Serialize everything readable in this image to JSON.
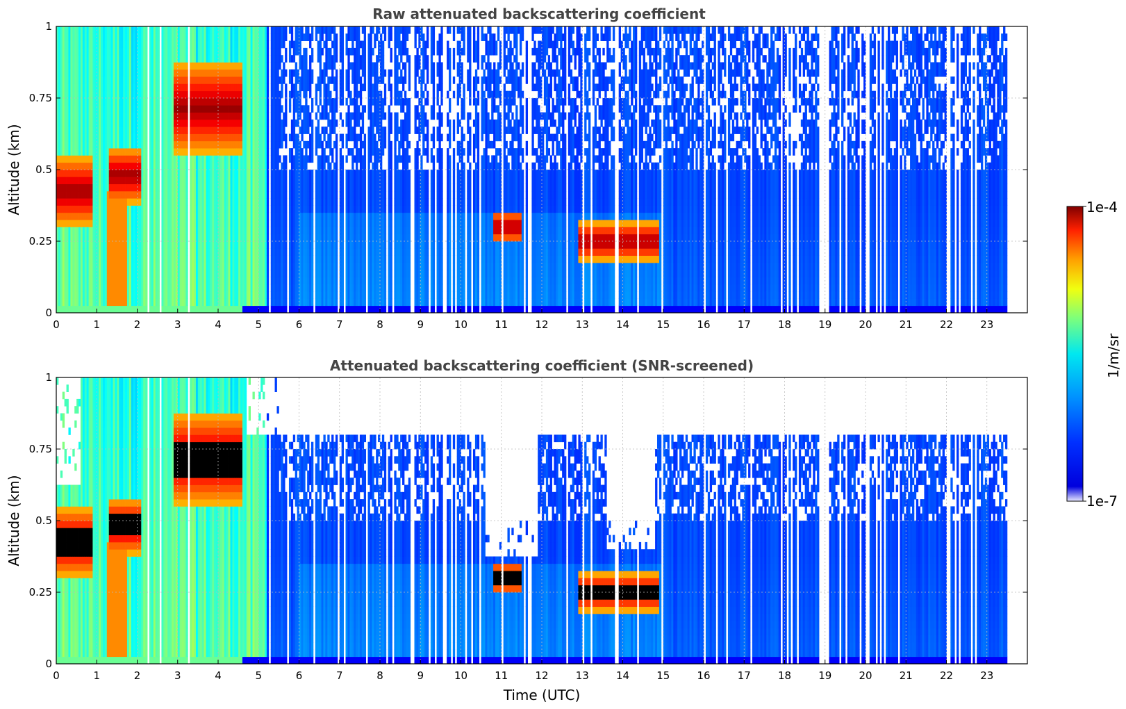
{
  "chart_data": [
    {
      "type": "heatmap",
      "title": "Raw attenuated backscattering coefficient",
      "xlabel": "",
      "ylabel": "Altitude (km)",
      "xlim": [
        0,
        24
      ],
      "ylim": [
        0,
        1
      ],
      "x_ticks": [
        "0",
        "1",
        "2",
        "3",
        "4",
        "5",
        "6",
        "7",
        "8",
        "9",
        "10",
        "11",
        "12",
        "13",
        "14",
        "15",
        "16",
        "17",
        "18",
        "19",
        "20",
        "21",
        "22",
        "23"
      ],
      "y_ticks": [
        "0",
        "0.25",
        "0.5",
        "0.75",
        "1"
      ],
      "grid": true,
      "data_extent_time": [
        0,
        23.5
      ],
      "features": [
        {
          "kind": "cloud",
          "time": [
            0.0,
            0.9
          ],
          "altitude": [
            0.3,
            0.55
          ],
          "level": "high"
        },
        {
          "kind": "cloud",
          "time": [
            1.3,
            2.1
          ],
          "altitude": [
            0.38,
            0.58
          ],
          "level": "high"
        },
        {
          "kind": "cloud",
          "time": [
            2.9,
            4.6
          ],
          "altitude": [
            0.55,
            0.88
          ],
          "level": "high"
        },
        {
          "kind": "cloud",
          "time": [
            10.8,
            11.5
          ],
          "altitude": [
            0.24,
            0.36
          ],
          "level": "high"
        },
        {
          "kind": "cloud",
          "time": [
            12.9,
            14.9
          ],
          "altitude": [
            0.18,
            0.32
          ],
          "level": "high"
        },
        {
          "kind": "aerosol",
          "time": [
            1.3,
            1.7
          ],
          "altitude": [
            0.0,
            0.4
          ],
          "level": "moderate"
        },
        {
          "kind": "noise",
          "time": [
            6.0,
            23.5
          ],
          "altitude": [
            0.5,
            1.0
          ],
          "level": "low"
        }
      ]
    },
    {
      "type": "heatmap",
      "title": "Attenuated backscattering coefficient (SNR-screened)",
      "xlabel": "Time (UTC)",
      "ylabel": "Altitude (km)",
      "xlim": [
        0,
        24
      ],
      "ylim": [
        0,
        1
      ],
      "x_ticks": [
        "0",
        "1",
        "2",
        "3",
        "4",
        "5",
        "6",
        "7",
        "8",
        "9",
        "10",
        "11",
        "12",
        "13",
        "14",
        "15",
        "16",
        "17",
        "18",
        "19",
        "20",
        "21",
        "22",
        "23"
      ],
      "y_ticks": [
        "0",
        "0.25",
        "0.5",
        "0.75",
        "1"
      ],
      "grid": true,
      "data_extent_time": [
        0,
        23.5
      ],
      "saturated_color": "#000000",
      "screened_regions": [
        {
          "time": [
            0.0,
            0.6
          ],
          "altitude": [
            0.62,
            1.0
          ]
        },
        {
          "time": [
            4.7,
            23.5
          ],
          "altitude": [
            0.8,
            1.0
          ]
        },
        {
          "time": [
            10.6,
            11.9
          ],
          "altitude": [
            0.38,
            0.8
          ]
        },
        {
          "time": [
            13.6,
            14.8
          ],
          "altitude": [
            0.4,
            0.8
          ]
        }
      ]
    }
  ],
  "colorbar": {
    "label": "1/m/sr",
    "max_label": "1e-4",
    "min_label": "1e-7",
    "scale": "log",
    "range": [
      1e-07,
      0.0001
    ],
    "colormap": "jet"
  },
  "colors": {
    "title": "#444444",
    "grid": "#bbbbbb",
    "saturated": "#000000",
    "background": "#ffffff"
  }
}
